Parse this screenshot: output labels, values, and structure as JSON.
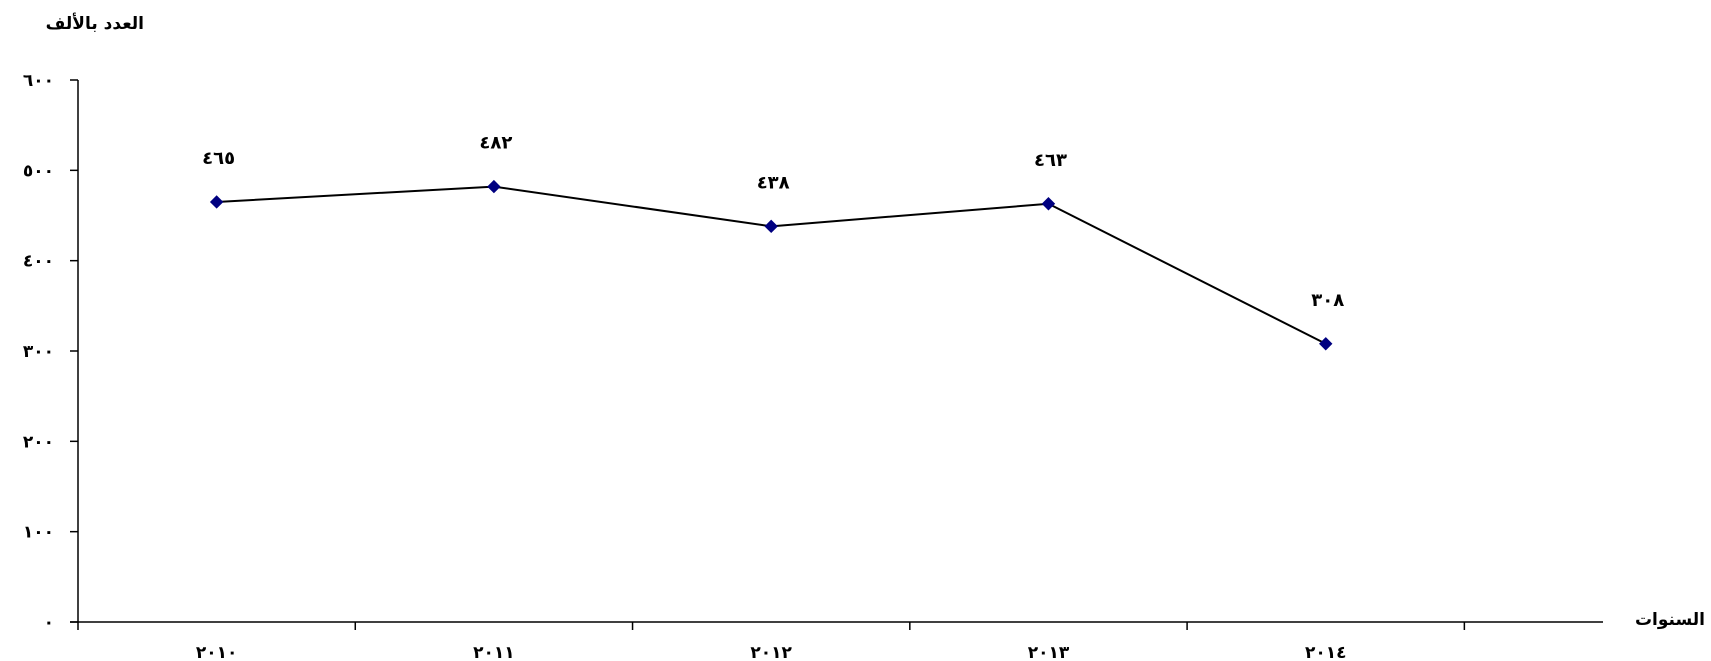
{
  "chart_data": {
    "type": "line",
    "title": "",
    "ylabel": "العدد بالألف",
    "xlabel": "السنوات",
    "categories": [
      "٢٠١٠",
      "٢٠١١",
      "٢٠١٢",
      "٢٠١٣",
      "٢٠١٤"
    ],
    "yticks": [
      "٠",
      "١٠٠",
      "٢٠٠",
      "٣٠٠",
      "٤٠٠",
      "٥٠٠",
      "٦٠٠"
    ],
    "ylim": [
      0,
      600
    ],
    "series": [
      {
        "values": [
          465,
          482,
          438,
          463,
          308
        ],
        "labels": [
          "٤٦٥",
          "٤٨٢",
          "٤٣٨",
          "٤٦٣",
          "٣٠٨"
        ],
        "line_color": "#000000",
        "marker": "diamond",
        "marker_color": "#000080"
      }
    ],
    "grid": false,
    "legend": "none"
  }
}
